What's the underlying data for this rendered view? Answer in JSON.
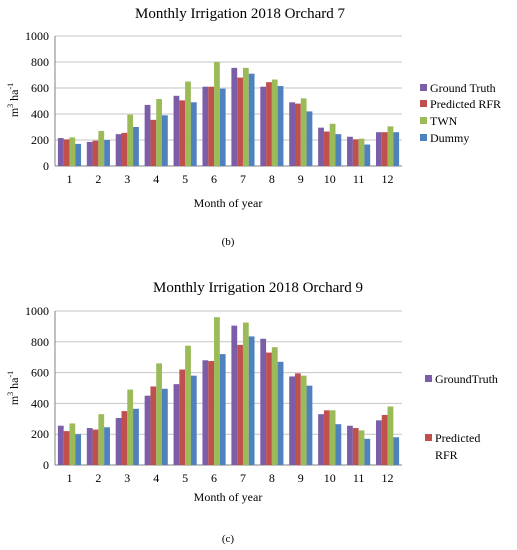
{
  "colors": {
    "ground_truth": "#7b5ea7",
    "predicted_rfr": "#c0504d",
    "twn": "#9bbb59",
    "dummy": "#4f81bd",
    "grid": "#c6c6c6",
    "axis": "#808080"
  },
  "chart_data": [
    {
      "type": "bar",
      "title": "Monthly Irrigation 2018 Orchard 7",
      "xlabel": "Month of year",
      "ylabel": "m3 ha-1",
      "ylabel_parts": {
        "base": "m",
        "sup1": "3",
        "mid": " ha",
        "sup2": "-1"
      },
      "ylim": [
        0,
        1000
      ],
      "yticks": [
        "0",
        "200",
        "400",
        "600",
        "800",
        "1000"
      ],
      "grid": true,
      "legend_position": "right",
      "caption": "(b)",
      "categories": [
        "1",
        "2",
        "3",
        "4",
        "5",
        "6",
        "7",
        "8",
        "9",
        "10",
        "11",
        "12"
      ],
      "series": [
        {
          "name": "Ground Truth",
          "color": "ground_truth",
          "values": [
            215,
            185,
            245,
            470,
            540,
            610,
            755,
            610,
            490,
            295,
            225,
            260
          ]
        },
        {
          "name": "Predicted RFR",
          "color": "predicted_rfr",
          "values": [
            205,
            195,
            255,
            355,
            505,
            610,
            680,
            645,
            480,
            265,
            205,
            260
          ]
        },
        {
          "name": "TWN",
          "color": "twn",
          "values": [
            220,
            270,
            395,
            515,
            650,
            800,
            755,
            665,
            520,
            325,
            210,
            305
          ]
        },
        {
          "name": "Dummy",
          "color": "dummy",
          "values": [
            170,
            200,
            300,
            390,
            490,
            595,
            710,
            615,
            420,
            245,
            165,
            260
          ]
        }
      ]
    },
    {
      "type": "bar",
      "title": "Monthly Irrigation 2018 Orchard 9",
      "xlabel": "Month of year",
      "ylabel": "m3 ha-1",
      "ylabel_parts": {
        "base": "m",
        "sup1": "3",
        "mid": " ha",
        "sup2": "-1"
      },
      "ylim": [
        0,
        1000
      ],
      "yticks": [
        "0",
        "200",
        "400",
        "600",
        "800",
        "1000"
      ],
      "grid": true,
      "legend_position": "right",
      "caption": "(c)",
      "categories": [
        "1",
        "2",
        "3",
        "4",
        "5",
        "6",
        "7",
        "8",
        "9",
        "10",
        "11",
        "12"
      ],
      "series": [
        {
          "name": "GroundTruth",
          "color": "ground_truth",
          "values": [
            255,
            240,
            305,
            450,
            525,
            680,
            905,
            820,
            575,
            330,
            255,
            290
          ]
        },
        {
          "name": "Predicted RFR",
          "color": "predicted_rfr",
          "values": [
            220,
            230,
            350,
            510,
            620,
            675,
            780,
            730,
            595,
            355,
            240,
            325
          ]
        },
        {
          "name": "",
          "color": "twn",
          "values": [
            270,
            330,
            490,
            660,
            775,
            960,
            925,
            765,
            580,
            355,
            225,
            380
          ]
        },
        {
          "name": "",
          "color": "dummy",
          "values": [
            200,
            245,
            365,
            495,
            580,
            720,
            835,
            670,
            515,
            265,
            170,
            180
          ]
        }
      ]
    }
  ]
}
